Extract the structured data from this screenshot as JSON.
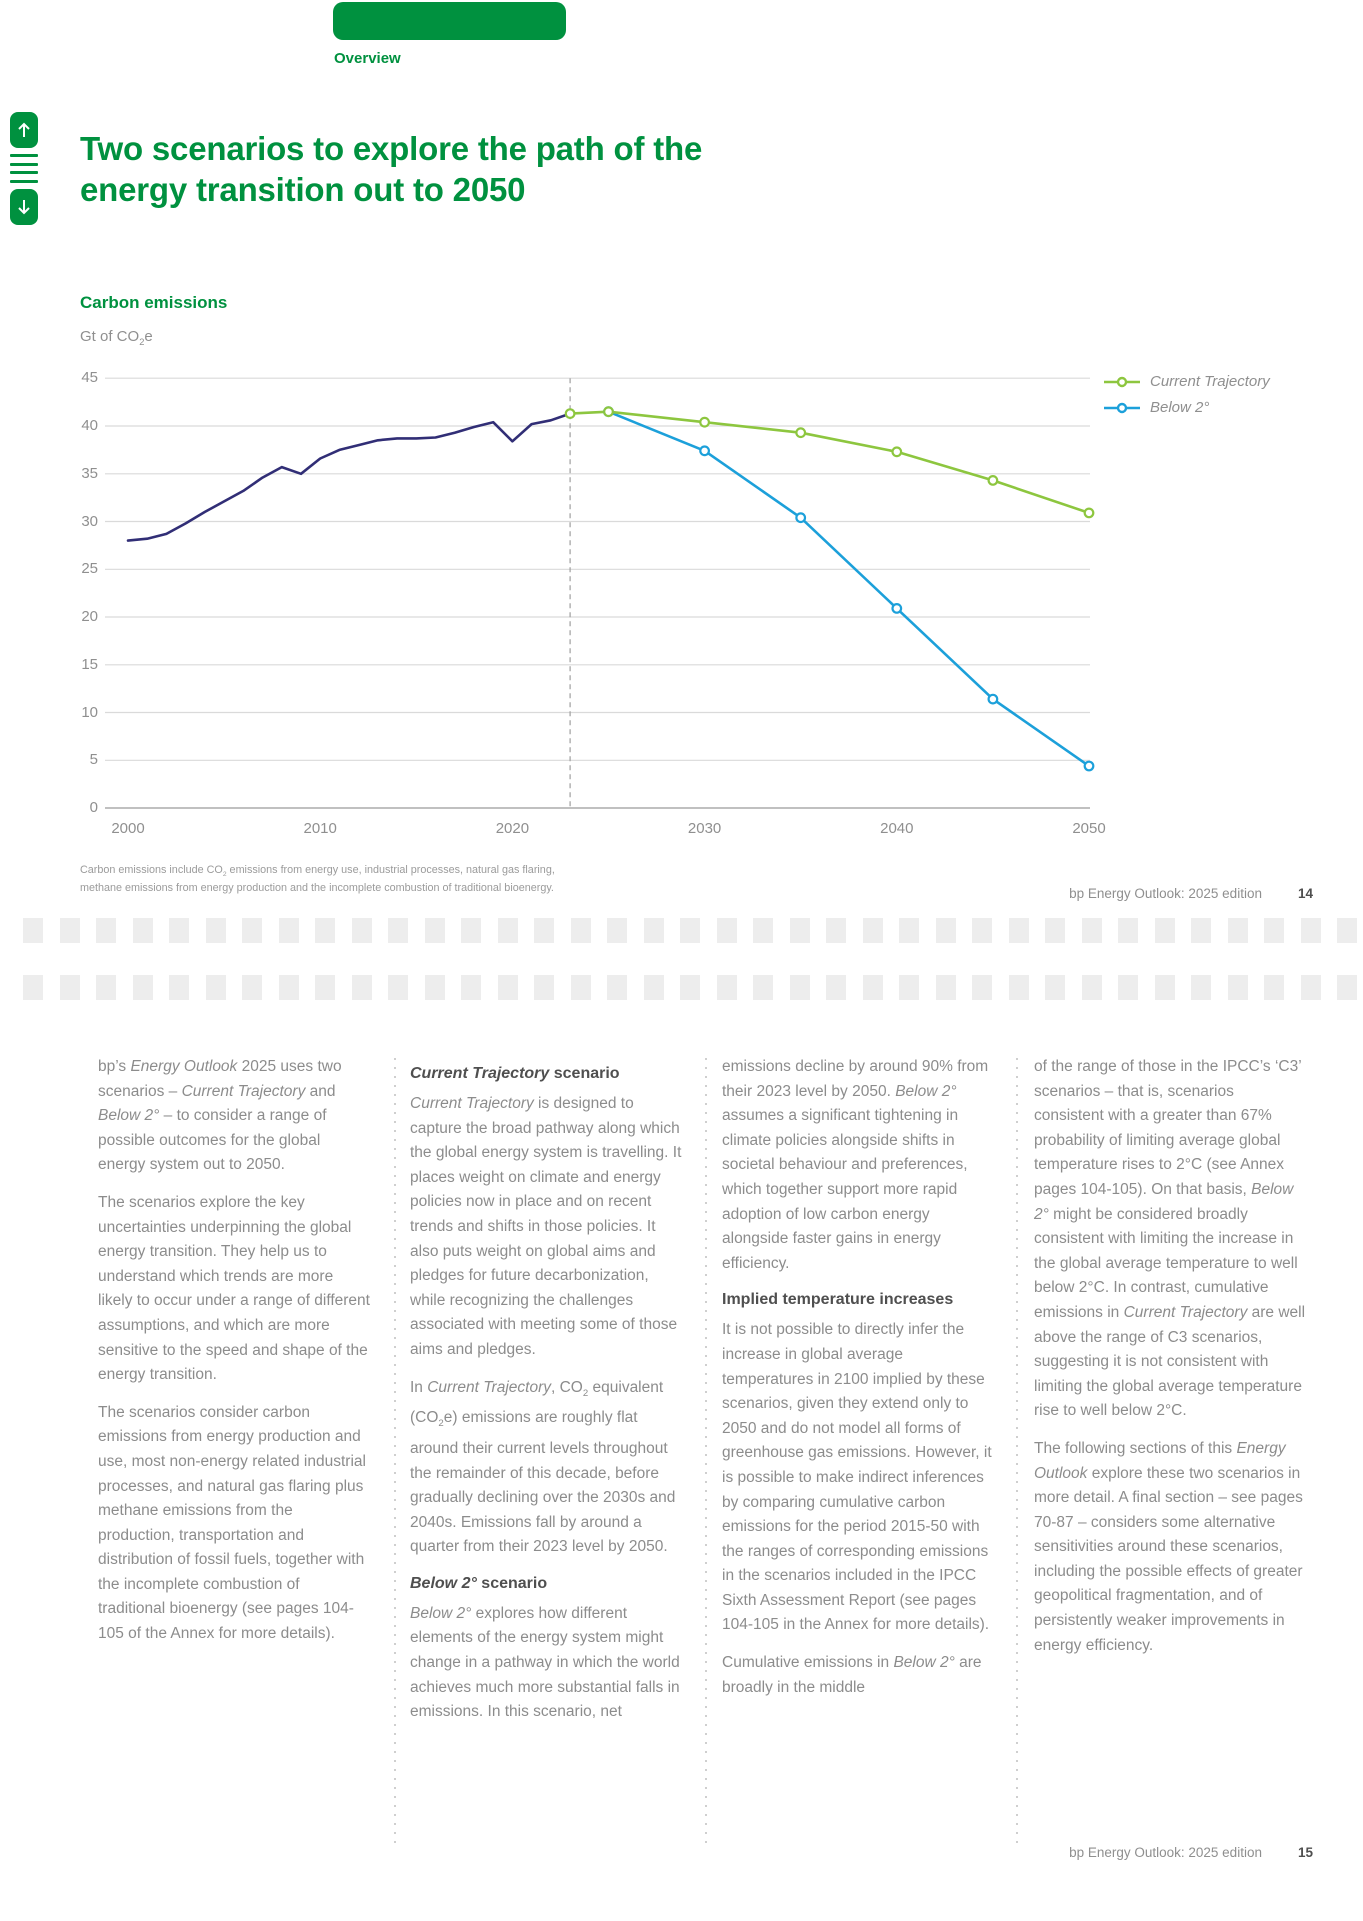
{
  "colors": {
    "accent_green": "#00913f",
    "line_green": "#8dc63f",
    "line_blue": "#1ca0da",
    "line_history": "#312e76",
    "grid": "#dadada",
    "axis": "#9b9b9b",
    "dashed": "#a5a5a5",
    "square": "#ededed"
  },
  "header": {
    "tab_label": "Overview"
  },
  "nav": {
    "icons": [
      "arrow-up-icon",
      "menu-lines-icon",
      "arrow-down-icon"
    ]
  },
  "title": {
    "line1": "Two scenarios to explore the path of the",
    "line2": "energy transition out to 2050"
  },
  "chart_data": {
    "type": "line",
    "title": "Carbon emissions",
    "unit_html": "Gt of CO<sub>2</sub>e",
    "xlim": [
      2000,
      2050
    ],
    "ylim": [
      0,
      45
    ],
    "x_ticks": [
      2000,
      2010,
      2020,
      2030,
      2040,
      2050
    ],
    "y_ticks": [
      45,
      40,
      35,
      30,
      25,
      20,
      15,
      10,
      5,
      0
    ],
    "grid": true,
    "annotation_x": 2023,
    "legend_position": "top-right",
    "legend": [
      {
        "label": "Current Trajectory",
        "color": "#8dc63f"
      },
      {
        "label": "Below 2°",
        "color": "#1ca0da"
      }
    ],
    "series": [
      {
        "name": "History",
        "color": "#312e76",
        "markers": false,
        "x": [
          2000,
          2001,
          2002,
          2003,
          2004,
          2005,
          2006,
          2007,
          2008,
          2009,
          2010,
          2011,
          2012,
          2013,
          2014,
          2015,
          2016,
          2017,
          2018,
          2019,
          2020,
          2021,
          2022,
          2023
        ],
        "values": [
          28.0,
          28.2,
          28.7,
          29.8,
          31.0,
          32.1,
          33.2,
          34.6,
          35.7,
          35.0,
          36.6,
          37.5,
          38.0,
          38.5,
          38.7,
          38.7,
          38.8,
          39.3,
          39.9,
          40.4,
          38.4,
          40.2,
          40.6,
          41.3
        ]
      },
      {
        "name": "Below 2°",
        "color": "#1ca0da",
        "markers": true,
        "x": [
          2025,
          2030,
          2035,
          2040,
          2045,
          2050
        ],
        "values": [
          41.5,
          37.4,
          30.4,
          20.9,
          11.4,
          4.4
        ]
      },
      {
        "name": "Current Trajectory",
        "color": "#8dc63f",
        "markers": true,
        "x": [
          2023,
          2025,
          2030,
          2035,
          2040,
          2045,
          2050
        ],
        "values": [
          41.3,
          41.5,
          40.4,
          39.3,
          37.3,
          34.3,
          30.9
        ]
      }
    ]
  },
  "footnote": {
    "line1_html": "Carbon emissions include CO<sub>2</sub> emissions from energy use, industrial processes, natural gas flaring,",
    "line2_html": "methane emissions from energy production and the incomplete combustion of traditional bioenergy."
  },
  "footer_top": {
    "text": "bp Energy Outlook: 2025 edition",
    "page": "14"
  },
  "footer_bottom": {
    "text": "bp Energy Outlook: 2025 edition",
    "page": "15"
  },
  "decor": {
    "rows": [
      918,
      975
    ],
    "count": 37,
    "color": "#ededed"
  },
  "columns": [
    {
      "blocks": [
        {
          "type": "p",
          "html": "bp’s <em>Energy Outlook</em> 2025 uses two scenarios – <em>Current Trajectory</em> and <em>Below 2°</em> – to consider a range of possible outcomes for the global energy system out to 2050."
        },
        {
          "type": "p",
          "html": "The scenarios explore the key uncertainties underpinning the global energy transition. They help us to understand which trends are more likely to occur under a range of different assumptions, and which are more sensitive to the speed and shape of the energy transition."
        },
        {
          "type": "p",
          "html": "The scenarios consider carbon emissions from energy production and use, most non-energy related industrial processes, and natural gas flaring plus methane emissions from the production, transportation and distribution of fossil fuels, together with the incomplete combustion of traditional bioenergy (see pages 104-105 of the Annex for more details)."
        }
      ]
    },
    {
      "blocks": [
        {
          "type": "h",
          "html": "<em>Current Trajectory</em> scenario"
        },
        {
          "type": "p",
          "html": "<em>Current Trajectory</em> is designed to capture the broad pathway along which the global energy system is travelling. It places weight on climate and energy policies now in place and on recent trends and shifts in those policies. It also puts weight on global aims and pledges for future decarbonization, while recognizing the challenges associated with meeting some of those aims and pledges."
        },
        {
          "type": "p",
          "html": "In <em>Current Trajectory</em>, CO<sub>2</sub> equivalent (CO<sub>2</sub>e) emissions are roughly flat around their current levels throughout the remainder of this decade, before gradually declining over the 2030s and 2040s. Emissions fall by around a quarter from their 2023 level by 2050."
        },
        {
          "type": "h",
          "html": "<em>Below 2°</em> scenario"
        },
        {
          "type": "p",
          "html": "<em>Below 2°</em> explores how different elements of the energy system might change in a pathway in which the world achieves much more substantial falls in emissions. In this scenario, net"
        }
      ]
    },
    {
      "blocks": [
        {
          "type": "p",
          "html": "emissions decline by around 90% from their 2023 level by 2050. <em>Below 2°</em> assumes a significant tightening in climate policies alongside shifts in societal behaviour and preferences, which together support more rapid adoption of low carbon energy alongside faster gains in energy efficiency."
        },
        {
          "type": "h",
          "html": "Implied temperature increases"
        },
        {
          "type": "p",
          "html": "It is not possible to directly infer the increase in global average temperatures in 2100 implied by these scenarios, given they extend only to 2050 and do not model all forms of greenhouse gas emissions. However, it is possible to make indirect inferences by comparing cumulative carbon emissions for the period 2015-50 with the ranges of corresponding emissions in the scenarios included in the IPCC Sixth Assessment Report (see pages 104-105 in the Annex for more details)."
        },
        {
          "type": "p",
          "html": "Cumulative emissions in <em>Below 2°</em> are broadly in the middle"
        }
      ]
    },
    {
      "blocks": [
        {
          "type": "p",
          "html": "of the range of those in the IPCC’s ‘C3’ scenarios – that is, scenarios consistent with a greater than 67% probability of limiting average global temperature rises to 2°C (see Annex pages 104-105). On that basis, <em>Below 2°</em> might be considered broadly consistent with limiting the increase in the global average temperature to well below 2°C. In contrast, cumulative emissions in <em>Current Trajectory</em> are well above the range of C3 scenarios, suggesting it is not consistent with limiting the global average temperature rise to well below 2°C."
        },
        {
          "type": "p",
          "html": "The following sections of this <em>Energy Outlook</em> explore these two scenarios in more detail. A final section – see pages 70-87 – considers some alternative sensitivities around these scenarios, including the possible effects of greater geopolitical fragmentation, and of persistently weaker improvements in energy efficiency."
        }
      ]
    }
  ]
}
